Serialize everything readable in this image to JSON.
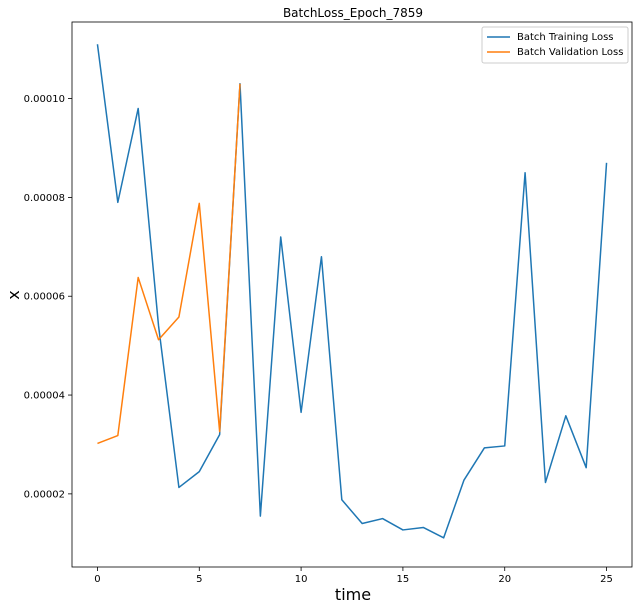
{
  "chart_data": {
    "type": "line",
    "title": "BatchLoss_Epoch_7859",
    "xlabel": "time",
    "ylabel": "x",
    "xlim": [
      -1.25,
      26.25
    ],
    "ylim": [
      5.2e-06,
      0.0001155
    ],
    "xticks": [
      0,
      5,
      10,
      15,
      20,
      25
    ],
    "xtick_labels": [
      "0",
      "5",
      "10",
      "15",
      "20",
      "25"
    ],
    "yticks": [
      2e-05,
      4e-05,
      6e-05,
      8e-05,
      0.0001
    ],
    "ytick_labels": [
      "0.00002",
      "0.00004",
      "0.00006",
      "0.00008",
      "0.00010"
    ],
    "grid": false,
    "legend_position": "upper right",
    "series": [
      {
        "name": "Batch Training Loss",
        "color": "#1f77b4",
        "x": [
          0,
          1,
          2,
          3,
          4,
          5,
          6,
          7,
          8,
          9,
          10,
          11,
          12,
          13,
          14,
          15,
          16,
          17,
          18,
          19,
          20,
          21,
          22,
          23,
          24,
          25
        ],
        "values": [
          0.000111,
          7.9e-05,
          9.8e-05,
          5.4e-05,
          2.13e-05,
          2.45e-05,
          3.2e-05,
          0.000103,
          1.55e-05,
          7.2e-05,
          3.65e-05,
          6.8e-05,
          1.88e-05,
          1.4e-05,
          1.5e-05,
          1.27e-05,
          1.32e-05,
          1.11e-05,
          2.28e-05,
          2.93e-05,
          2.97e-05,
          8.5e-05,
          2.23e-05,
          3.58e-05,
          2.53e-05,
          8.7e-05
        ]
      },
      {
        "name": "Batch Validation Loss",
        "color": "#ff7f0e",
        "x": [
          0,
          1,
          2,
          3,
          4,
          5,
          6,
          7
        ],
        "values": [
          3.02e-05,
          3.18e-05,
          6.38e-05,
          5.12e-05,
          5.58e-05,
          7.88e-05,
          3.26e-05,
          0.000103
        ]
      }
    ]
  }
}
